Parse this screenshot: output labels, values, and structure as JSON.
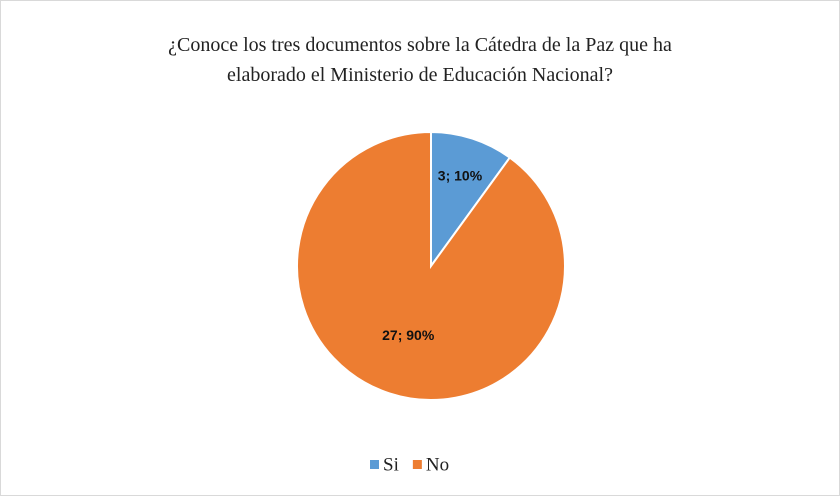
{
  "chart_data": {
    "type": "pie",
    "title": [
      "¿Conoce los tres documentos sobre la Cátedra de la Paz que ha",
      "elaborado el Ministerio  de  Educación Nacional?"
    ],
    "categories": [
      "Si",
      "No"
    ],
    "values": [
      3,
      27
    ],
    "value_labels": [
      "3; 10%",
      "27; 90%"
    ],
    "colors": [
      "#5b9bd5",
      "#ed7d31"
    ],
    "legend": "bottom"
  }
}
